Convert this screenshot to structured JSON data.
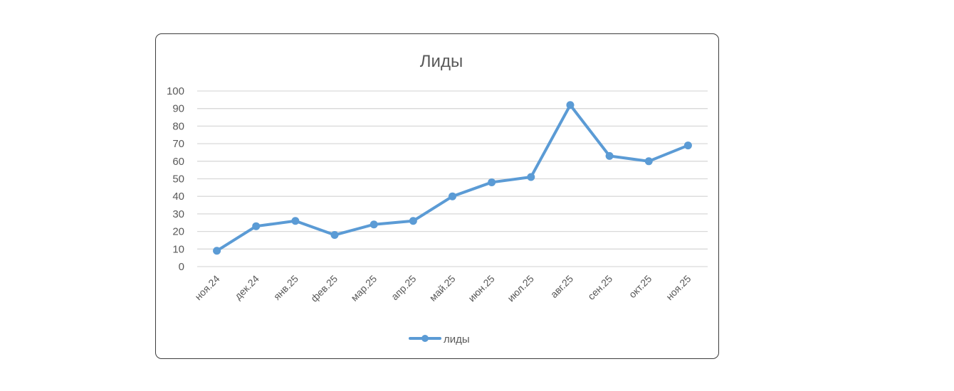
{
  "chart_data": {
    "type": "line",
    "title": "Лиды",
    "xlabel": "",
    "ylabel": "",
    "categories": [
      "ноя.24",
      "дек.24",
      "янв.25",
      "фев.25",
      "мар.25",
      "апр.25",
      "май.25",
      "июн.25",
      "июл.25",
      "авг.25",
      "сен.25",
      "окт.25",
      "ноя.25"
    ],
    "series": [
      {
        "name": "лиды",
        "values": [
          9,
          23,
          26,
          18,
          24,
          26,
          40,
          48,
          51,
          92,
          63,
          60,
          69
        ],
        "color": "#5b9bd5"
      }
    ],
    "ylim": [
      0,
      100
    ],
    "yticks": [
      0,
      10,
      20,
      30,
      40,
      50,
      60,
      70,
      80,
      90,
      100
    ],
    "grid": true,
    "legend": "bottom",
    "colors": {
      "title": "#595959",
      "axis_text": "#595959",
      "grid": "#d9d9d9"
    }
  }
}
